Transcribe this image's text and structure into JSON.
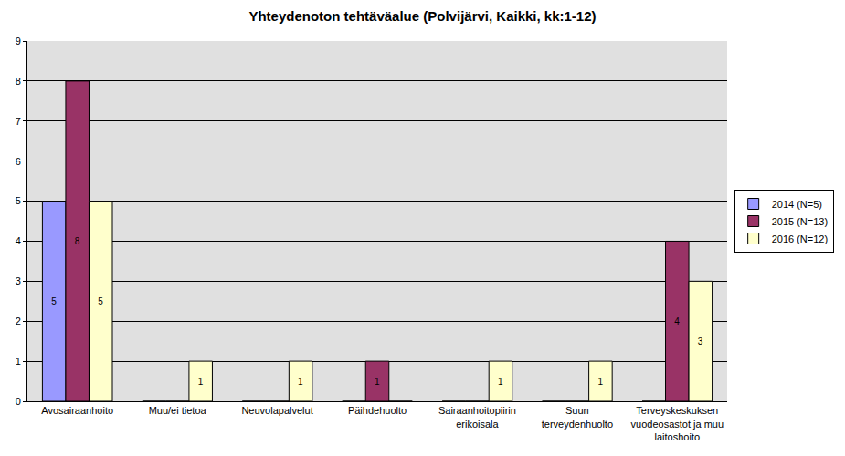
{
  "chart_data": {
    "type": "bar",
    "title": "Yhteydenoton tehtäväalue (Polvijärvi, Kaikki, kk:1-12)",
    "categories": [
      "Avosairaanhoito",
      "Muu/ei tietoa",
      "Neuvolapalvelut",
      "Päihdehuolto",
      "Sairaanhoitopiirin\nerikoisala",
      "Suun\nterveydenhuolto",
      "Terveyskeskuksen\nvuodeosastot ja muu\nlaitoshoito"
    ],
    "series": [
      {
        "name": "2014 (N=5)",
        "color": "#9999ff",
        "values": [
          5,
          0,
          0,
          0,
          0,
          0,
          0
        ]
      },
      {
        "name": "2015 (N=13)",
        "color": "#993366",
        "values": [
          8,
          0,
          0,
          1,
          0,
          0,
          4
        ]
      },
      {
        "name": "2016 (N=12)",
        "color": "#ffffcc",
        "values": [
          5,
          1,
          1,
          0,
          1,
          1,
          3
        ]
      }
    ],
    "ylim": [
      0,
      9
    ],
    "yticks": [
      0,
      1,
      2,
      3,
      4,
      5,
      6,
      7,
      8,
      9
    ],
    "grid": true,
    "legend": "right",
    "data_labels": true
  }
}
